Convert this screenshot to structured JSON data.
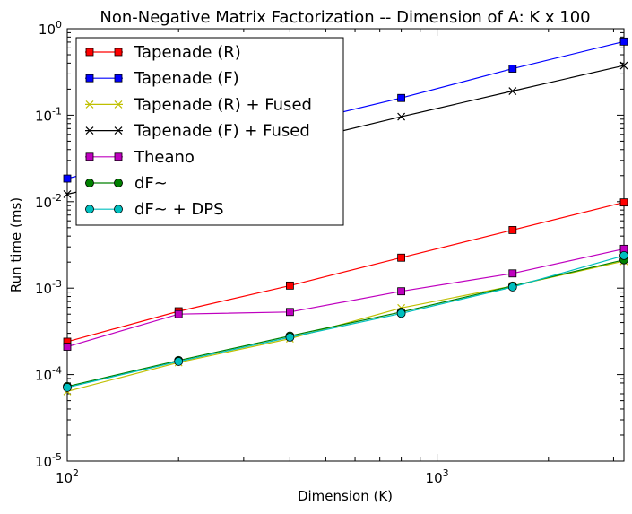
{
  "chart_data": {
    "type": "line",
    "title": "Non-Negative Matrix Factorization -- Dimension of A: K x 100",
    "xlabel": "Dimension (K)",
    "ylabel": "Run time (ms)",
    "xscale": "log",
    "yscale": "log",
    "xlim": [
      100,
      3200
    ],
    "ylim": [
      1e-05,
      1
    ],
    "x_ticks": [
      {
        "value": 100,
        "base": "10",
        "exp": "2"
      },
      {
        "value": 1000,
        "base": "10",
        "exp": "3"
      }
    ],
    "y_ticks": [
      {
        "value": 1,
        "base": "10",
        "exp": "0"
      },
      {
        "value": 0.1,
        "base": "10",
        "exp": "-1"
      },
      {
        "value": 0.01,
        "base": "10",
        "exp": "-2"
      },
      {
        "value": 0.001,
        "base": "10",
        "exp": "-3"
      },
      {
        "value": 0.0001,
        "base": "10",
        "exp": "-4"
      },
      {
        "value": 1e-05,
        "base": "10",
        "exp": "-5"
      }
    ],
    "x": [
      100,
      200,
      400,
      800,
      1600,
      3200
    ],
    "legend_position": "top-left",
    "grid": false,
    "series": [
      {
        "name": "Tapenade (R)",
        "color": "#ff0000",
        "marker": "square",
        "values": [
          0.00024,
          0.00054,
          0.00107,
          0.00225,
          0.0047,
          0.0098
        ]
      },
      {
        "name": "Tapenade (F)",
        "color": "#0000ff",
        "marker": "square",
        "values": [
          0.0185,
          0.038,
          0.078,
          0.158,
          0.345,
          0.71
        ]
      },
      {
        "name": "Tapenade (R) + Fused",
        "color": "#bfbf00",
        "marker": "x",
        "values": [
          6.4e-05,
          0.000138,
          0.00026,
          0.00059,
          0.00106,
          0.00205
        ]
      },
      {
        "name": "Tapenade (F) + Fused",
        "color": "#000000",
        "marker": "x",
        "values": [
          0.0122,
          0.024,
          0.047,
          0.096,
          0.19,
          0.375
        ]
      },
      {
        "name": "Theano",
        "color": "#bf00bf",
        "marker": "square",
        "values": [
          0.00021,
          0.0005,
          0.00053,
          0.00092,
          0.00148,
          0.00285
        ]
      },
      {
        "name": "dF~",
        "color": "#008000",
        "marker": "circle",
        "values": [
          7.3e-05,
          0.000146,
          0.00028,
          0.00053,
          0.00106,
          0.00212
        ]
      },
      {
        "name": "dF~ + DPS",
        "color": "#00bfbf",
        "marker": "circle",
        "values": [
          7.1e-05,
          0.000142,
          0.00027,
          0.00051,
          0.00103,
          0.00238
        ]
      }
    ]
  }
}
